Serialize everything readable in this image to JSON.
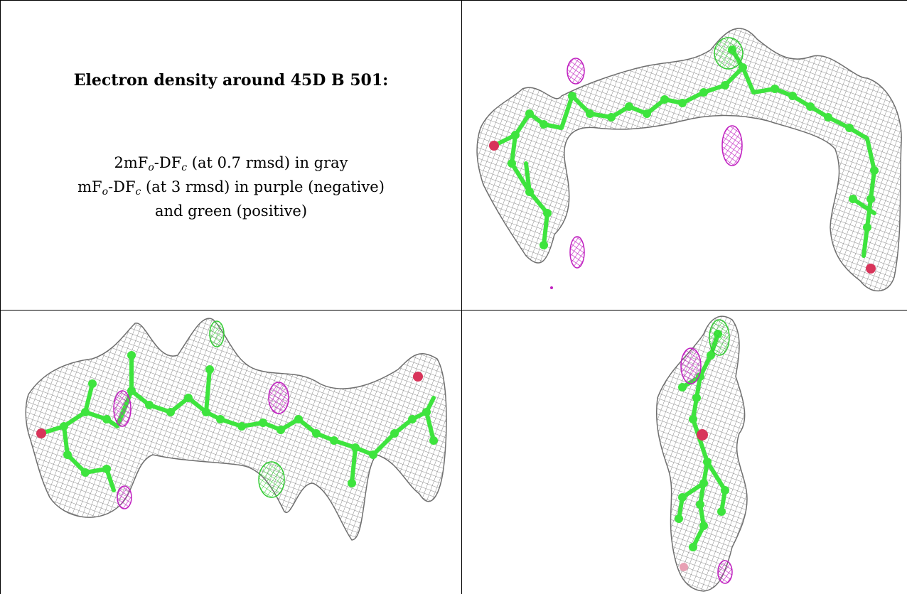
{
  "caption": {
    "title": "Electron density around 45D B 501:",
    "lines": [
      {
        "prefix": "2mF",
        "sub1": "o",
        "mid": "-DF",
        "sub2": "c",
        "suffix": " (at 0.7 rmsd) in gray"
      },
      {
        "prefix": "mF",
        "sub1": "o",
        "mid": "-DF",
        "sub2": "c",
        "suffix": " (at 3 rmsd) in purple (negative)"
      },
      {
        "text": "and green (positive)"
      }
    ]
  },
  "colors": {
    "mesh": "#8a8a8a",
    "carbon": "#3ee43e",
    "oxygen": "#d8345a",
    "negative": "#c020c0",
    "positive": "#33cc33"
  },
  "panels": [
    {
      "name": "top-right-view",
      "content": "electron-density-image"
    },
    {
      "name": "bottom-left-view",
      "content": "electron-density-image"
    },
    {
      "name": "bottom-right-view",
      "content": "electron-density-image"
    }
  ]
}
